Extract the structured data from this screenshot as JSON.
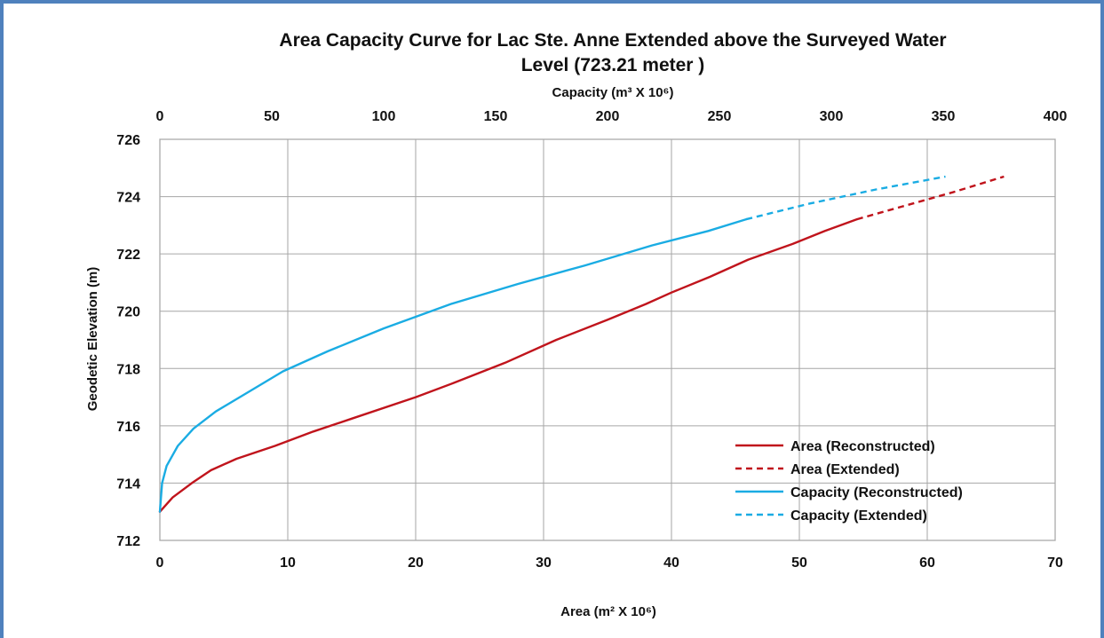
{
  "chart_data": {
    "type": "line",
    "title_line1": "Area Capacity Curve for Lac Ste. Anne Extended above the Surveyed Water",
    "title_line2": "Level (723.21   meter )",
    "xlabel_bottom": "Area (m² X 10⁶)",
    "xlabel_top": "Capacity (m³ X 10⁶)",
    "ylabel": "Geodetic Elevation (m)",
    "xlim_bottom": [
      0,
      70
    ],
    "xlim_top": [
      0,
      400
    ],
    "ylim": [
      712,
      726
    ],
    "xticks_bottom": [
      "0",
      "10",
      "20",
      "30",
      "40",
      "50",
      "60",
      "70"
    ],
    "xticks_top": [
      "0",
      "50",
      "100",
      "150",
      "200",
      "250",
      "300",
      "350",
      "400"
    ],
    "yticks": [
      "712",
      "714",
      "716",
      "718",
      "720",
      "722",
      "724",
      "726"
    ],
    "grid": true,
    "legend_position": "bottom-right",
    "series": [
      {
        "name": "Area (Reconstructed)",
        "axis": "bottom",
        "color": "#c0141c",
        "dash": "solid",
        "points": [
          [
            0,
            713
          ],
          [
            1,
            713.5
          ],
          [
            2.5,
            714
          ],
          [
            4,
            714.45
          ],
          [
            6,
            714.85
          ],
          [
            9,
            715.3
          ],
          [
            12,
            715.8
          ],
          [
            15,
            716.25
          ],
          [
            20,
            717
          ],
          [
            23,
            717.5
          ],
          [
            27,
            718.2
          ],
          [
            31,
            719
          ],
          [
            35,
            719.7
          ],
          [
            38,
            720.25
          ],
          [
            40,
            720.65
          ],
          [
            43,
            721.2
          ],
          [
            46,
            721.8
          ],
          [
            49.5,
            722.35
          ],
          [
            52,
            722.8
          ],
          [
            54.5,
            723.21
          ]
        ]
      },
      {
        "name": "Area (Extended)",
        "axis": "bottom",
        "color": "#c0141c",
        "dash": "dashed",
        "points": [
          [
            54.5,
            723.21
          ],
          [
            58,
            723.65
          ],
          [
            62,
            724.15
          ],
          [
            66,
            724.7
          ]
        ]
      },
      {
        "name": "Capacity (Reconstructed)",
        "axis": "top",
        "color": "#1aace3",
        "dash": "solid",
        "points": [
          [
            0,
            713
          ],
          [
            1,
            714
          ],
          [
            3,
            714.6
          ],
          [
            8,
            715.3
          ],
          [
            15,
            715.9
          ],
          [
            25,
            716.5
          ],
          [
            40,
            717.2
          ],
          [
            55,
            717.9
          ],
          [
            75,
            718.6
          ],
          [
            100,
            719.4
          ],
          [
            130,
            720.25
          ],
          [
            160,
            720.95
          ],
          [
            190,
            721.6
          ],
          [
            220,
            722.3
          ],
          [
            245,
            722.8
          ],
          [
            262,
            723.21
          ]
        ]
      },
      {
        "name": "Capacity (Extended)",
        "axis": "top",
        "color": "#1aace3",
        "dash": "dashed",
        "points": [
          [
            262,
            723.21
          ],
          [
            290,
            723.75
          ],
          [
            320,
            724.25
          ],
          [
            351,
            724.7
          ]
        ]
      }
    ]
  }
}
